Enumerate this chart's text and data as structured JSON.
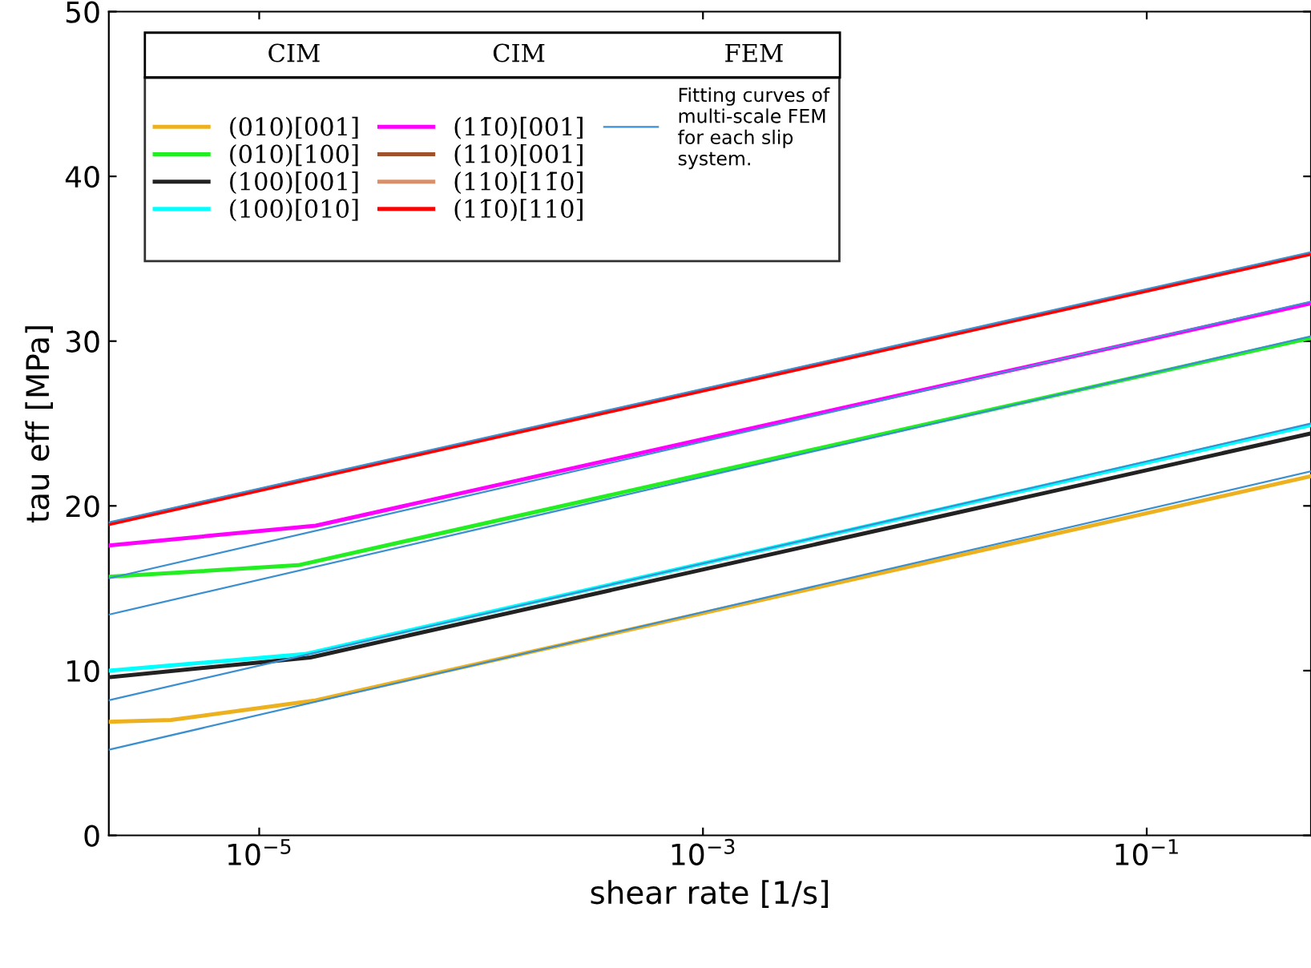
{
  "chart_data": {
    "type": "line",
    "xlabel": "shear rate [1/s]",
    "ylabel": "tau eff [MPa]",
    "log": "x",
    "xlim": [
      2.1e-06,
      0.55
    ],
    "xticks": [
      {
        "value": 1e-05,
        "label": "10$^{−5}$"
      },
      {
        "value": 0.001,
        "label": "10$^{−3}$"
      },
      {
        "value": 0.1,
        "label": "10$^{−1}$"
      }
    ],
    "ylim": [
      0,
      50
    ],
    "yticks": [
      0,
      10,
      20,
      30,
      40,
      50
    ],
    "grid": false,
    "legend": "top left",
    "annotations": [
      "CIM",
      "CIM",
      "FEM"
    ],
    "series": [
      {
        "name": "(010)[001]",
        "color": "#edb120",
        "x": [
          2.1e-06,
          4e-06,
          1.8e-05,
          0.55
        ],
        "values": [
          6.9,
          7.0,
          8.2,
          21.8
        ]
      },
      {
        "name": "(010)[100]",
        "color": "#22ee22",
        "x": [
          2.1e-06,
          1.5e-05,
          0.55
        ],
        "values": [
          15.7,
          16.4,
          30.2
        ]
      },
      {
        "name": "(100)[001]",
        "color": "#222222",
        "x": [
          2.1e-06,
          1.7e-05,
          0.55
        ],
        "values": [
          9.6,
          10.8,
          24.4
        ]
      },
      {
        "name": "(100)[010]",
        "color": "#00ffff",
        "x": [
          2.1e-06,
          1.6e-05,
          0.55
        ],
        "values": [
          10.0,
          11.0,
          24.9
        ]
      },
      {
        "name": "(11̄0)[001]",
        "color": "#ff00ff",
        "x": [
          2.1e-06,
          1.8e-05,
          0.55
        ],
        "values": [
          17.6,
          18.8,
          32.3
        ]
      },
      {
        "name": "(110)[001]",
        "color": "#a0522d"
      },
      {
        "name": "(110)[11̄0]",
        "color": "#d9906a"
      },
      {
        "name": "(11̄0)[110]",
        "color": "#ff0000",
        "x": [
          2.1e-06,
          0.55
        ],
        "values": [
          18.9,
          35.3
        ]
      },
      {
        "name": "Fitting curves of\nmulti-scale FEM\nfor each slip\nsystem.",
        "color": "#3a8fd0",
        "x": [
          2.1e-06,
          0.55
        ],
        "values": [
          5.2,
          22.1
        ]
      },
      {
        "color": "#3a8fd0",
        "x": [
          2.1e-06,
          0.55
        ],
        "values": [
          8.2,
          25.0
        ]
      },
      {
        "color": "#3a8fd0",
        "x": [
          2.1e-06,
          0.55
        ],
        "values": [
          13.4,
          30.3
        ]
      },
      {
        "color": "#3a8fd0",
        "x": [
          2.1e-06,
          0.55
        ],
        "values": [
          15.6,
          32.4
        ]
      },
      {
        "color": "#3a8fd0",
        "x": [
          2.1e-06,
          0.55
        ],
        "values": [
          19.0,
          35.4
        ]
      }
    ]
  }
}
